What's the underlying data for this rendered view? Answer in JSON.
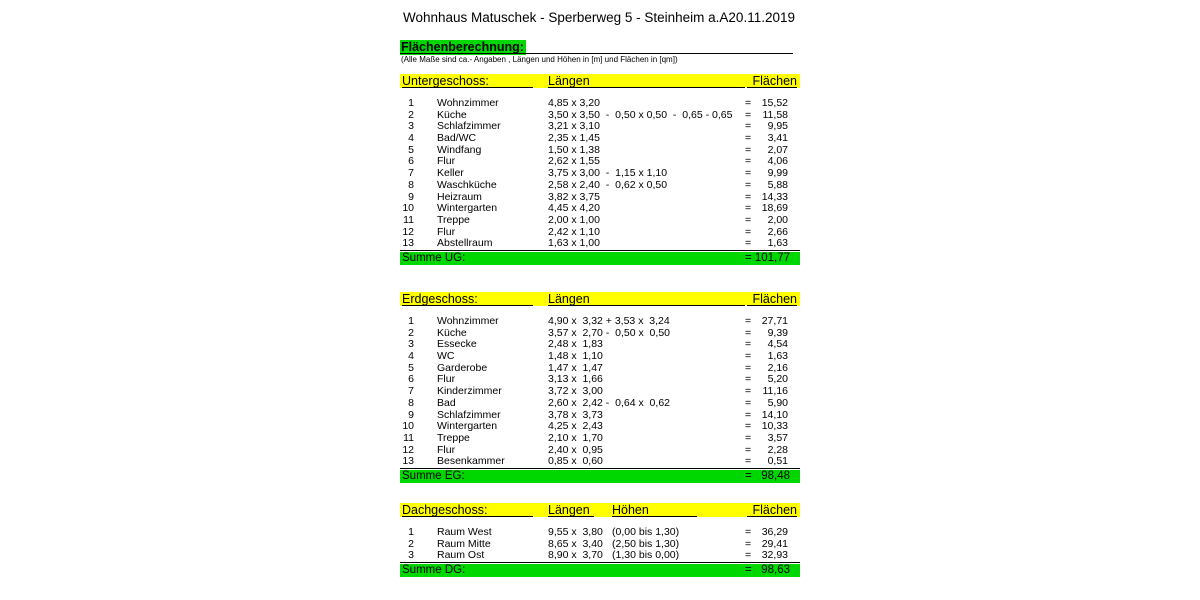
{
  "header": {
    "title": "Wohnhaus Matuschek - Sperberweg 5 - Steinheim a.A.",
    "date": "20.11.2019"
  },
  "subheader": {
    "heading": "Flächenberechnung:",
    "note": "(Alle Maße sind ca.- Angaben , Längen und Höhen in [m] und Flächen in [qm])"
  },
  "symbols": {
    "equals": "="
  },
  "colors": {
    "header_yellow": "#ffff00",
    "sum_green": "#00d600",
    "heading_highlight_green": "#00d600",
    "text": "#000000"
  },
  "tables": [
    {
      "name": "Untergeschoss:",
      "col_laengen": "Längen",
      "col_flaechen": "Flächen",
      "sum_label": "Summe UG:",
      "sum_value": "101,77",
      "rows": [
        {
          "num": "1",
          "room": "Wohnzimmer",
          "laengen": "4,85 x 3,20",
          "flaeche": "15,52"
        },
        {
          "num": "2",
          "room": "Küche",
          "laengen": "3,50 x 3,50  -  0,50 x 0,50  -  0,65 - 0,65",
          "flaeche": "11,58"
        },
        {
          "num": "3",
          "room": "Schlafzimmer",
          "laengen": "3,21 x 3,10",
          "flaeche": "9,95"
        },
        {
          "num": "4",
          "room": "Bad/WC",
          "laengen": "2,35 x 1,45",
          "flaeche": "3,41"
        },
        {
          "num": "5",
          "room": "Windfang",
          "laengen": "1,50 x 1,38",
          "flaeche": "2,07"
        },
        {
          "num": "6",
          "room": "Flur",
          "laengen": "2,62 x 1,55",
          "flaeche": "4,06"
        },
        {
          "num": "7",
          "room": "Keller",
          "laengen": "3,75 x 3,00  -  1,15 x 1,10",
          "flaeche": "9,99"
        },
        {
          "num": "8",
          "room": "Waschküche",
          "laengen": "2,58 x 2,40  -  0,62 x 0,50",
          "flaeche": "5,88"
        },
        {
          "num": "9",
          "room": "Heizraum",
          "laengen": "3,82 x 3,75",
          "flaeche": "14,33"
        },
        {
          "num": "10",
          "room": "Wintergarten",
          "laengen": "4,45 x 4,20",
          "flaeche": "18,69"
        },
        {
          "num": "11",
          "room": "Treppe",
          "laengen": "2,00 x 1,00",
          "flaeche": "2,00"
        },
        {
          "num": "12",
          "room": "Flur",
          "laengen": "2,42 x 1,10",
          "flaeche": "2,66"
        },
        {
          "num": "13",
          "room": "Abstellraum",
          "laengen": "1,63 x 1,00",
          "flaeche": "1,63"
        }
      ]
    },
    {
      "name": "Erdgeschoss:",
      "col_laengen": "Längen",
      "col_flaechen": "Flächen",
      "sum_label": "Summe EG:",
      "sum_value": "98,48",
      "rows": [
        {
          "num": "1",
          "room": "Wohnzimmer",
          "laengen": "4,90 x  3,32 + 3,53 x  3,24",
          "flaeche": "27,71"
        },
        {
          "num": "2",
          "room": "Küche",
          "laengen": "3,57 x  2,70 -  0,50 x  0,50",
          "flaeche": "9,39"
        },
        {
          "num": "3",
          "room": "Essecke",
          "laengen": "2,48 x  1,83",
          "flaeche": "4,54"
        },
        {
          "num": "4",
          "room": "WC",
          "laengen": "1,48 x  1,10",
          "flaeche": "1,63"
        },
        {
          "num": "5",
          "room": "Garderobe",
          "laengen": "1,47 x  1,47",
          "flaeche": "2,16"
        },
        {
          "num": "6",
          "room": "Flur",
          "laengen": "3,13 x  1,66",
          "flaeche": "5,20"
        },
        {
          "num": "7",
          "room": "Kinderzimmer",
          "laengen": "3,72 x  3,00",
          "flaeche": "11,16"
        },
        {
          "num": "8",
          "room": "Bad",
          "laengen": "2,60 x  2,42 -  0,64 x  0,62",
          "flaeche": "5,90"
        },
        {
          "num": "9",
          "room": "Schlafzimmer",
          "laengen": "3,78 x  3,73",
          "flaeche": "14,10"
        },
        {
          "num": "10",
          "room": "Wintergarten",
          "laengen": "4,25 x  2,43",
          "flaeche": "10,33"
        },
        {
          "num": "11",
          "room": "Treppe",
          "laengen": "2,10 x  1,70",
          "flaeche": "3,57"
        },
        {
          "num": "12",
          "room": "Flur",
          "laengen": "2,40 x  0,95",
          "flaeche": "2,28"
        },
        {
          "num": "13",
          "room": "Besenkammer",
          "laengen": "0,85 x  0,60",
          "flaeche": "0,51"
        }
      ]
    },
    {
      "name": "Dachgeschoss:",
      "col_laengen": "Längen",
      "col_hoehen": "Höhen",
      "col_flaechen": "Flächen",
      "sum_label": "Summe DG:",
      "sum_value": "98,63",
      "rows": [
        {
          "num": "1",
          "room": "Raum West",
          "laengen": "9,55 x  3,80",
          "hoehen": "(0,00 bis 1,30)",
          "flaeche": "36,29"
        },
        {
          "num": "2",
          "room": "Raum Mitte",
          "laengen": "8,65 x  3,40",
          "hoehen": "(2,50 bis 1,30)",
          "flaeche": "29,41"
        },
        {
          "num": "3",
          "room": "Raum Ost",
          "laengen": "8,90 x  3,70",
          "hoehen": "(1,30 bis 0,00)",
          "flaeche": "32,93"
        }
      ]
    }
  ]
}
